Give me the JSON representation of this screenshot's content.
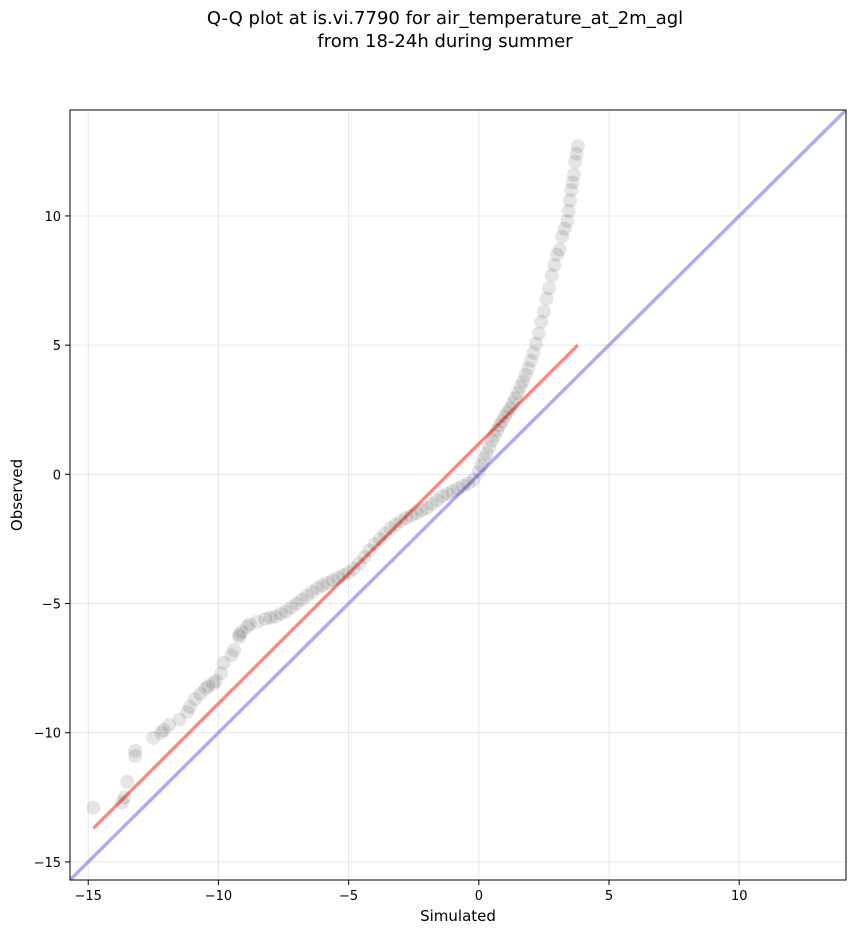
{
  "chart_data": {
    "type": "scatter",
    "title_lines": [
      "Q-Q plot at is.vi.7790 for air_temperature_at_2m_agl",
      "from 18-24h during summer"
    ],
    "xlabel": "Simulated",
    "ylabel": "Observed",
    "xlim": [
      -15.7,
      14.1
    ],
    "ylim": [
      -15.7,
      14.1
    ],
    "xticks": [
      -15,
      -10,
      -5,
      0,
      5,
      10
    ],
    "yticks": [
      -15,
      -10,
      -5,
      0,
      5,
      10
    ],
    "xtick_labels": [
      "−15",
      "−10",
      "−5",
      "0",
      "5",
      "10"
    ],
    "ytick_labels": [
      "−15",
      "−10",
      "−5",
      "0",
      "5",
      "10"
    ],
    "grid": true,
    "series": [
      {
        "kind": "points",
        "color": "#000000",
        "x": [
          -14.8,
          -13.7,
          -13.6,
          -13.5,
          -13.2,
          -13.2,
          -12.5,
          -12.2,
          -12.1,
          -11.9,
          -11.5,
          -11.2,
          -11.1,
          -10.9,
          -10.7,
          -10.5,
          -10.4,
          -10.2,
          -10.1,
          -9.9,
          -9.8,
          -9.5,
          -9.4,
          -9.2,
          -9.2,
          -9.1,
          -8.9,
          -8.8,
          -8.5,
          -8.2,
          -8.0,
          -7.8,
          -7.6,
          -7.4,
          -7.2,
          -7.0,
          -6.8,
          -6.6,
          -6.4,
          -6.2,
          -6.0,
          -5.8,
          -5.6,
          -5.4,
          -5.2,
          -5.0,
          -4.8,
          -4.6,
          -4.4,
          -4.2,
          -4.0,
          -3.8,
          -3.6,
          -3.4,
          -3.2,
          -3.0,
          -2.8,
          -2.6,
          -2.4,
          -2.2,
          -2.0,
          -1.8,
          -1.6,
          -1.4,
          -1.2,
          -1.0,
          -0.8,
          -0.6,
          -0.4,
          -0.2,
          0.0,
          0.1,
          0.2,
          0.3,
          0.4,
          0.5,
          0.6,
          0.7,
          0.8,
          0.9,
          1.0,
          1.1,
          1.2,
          1.3,
          1.4,
          1.5,
          1.6,
          1.7,
          1.8,
          1.9,
          2.0,
          2.1,
          2.2,
          2.3,
          2.4,
          2.5,
          2.6,
          2.7,
          2.8,
          2.9,
          3.0,
          3.1,
          3.2,
          3.3,
          3.4,
          3.45,
          3.5,
          3.55,
          3.6,
          3.65,
          3.7,
          3.75,
          3.8
        ],
        "y": [
          -12.9,
          -12.7,
          -12.5,
          -11.9,
          -10.9,
          -10.7,
          -10.2,
          -10.0,
          -9.9,
          -9.7,
          -9.5,
          -9.2,
          -9.0,
          -8.7,
          -8.5,
          -8.3,
          -8.2,
          -8.1,
          -8.0,
          -7.7,
          -7.3,
          -7.0,
          -6.8,
          -6.3,
          -6.2,
          -6.1,
          -5.9,
          -5.8,
          -5.7,
          -5.6,
          -5.55,
          -5.5,
          -5.4,
          -5.3,
          -5.15,
          -5.0,
          -4.85,
          -4.7,
          -4.55,
          -4.4,
          -4.3,
          -4.2,
          -4.1,
          -4.0,
          -3.9,
          -3.8,
          -3.65,
          -3.45,
          -3.2,
          -2.95,
          -2.7,
          -2.5,
          -2.3,
          -2.1,
          -1.95,
          -1.8,
          -1.7,
          -1.6,
          -1.5,
          -1.4,
          -1.3,
          -1.15,
          -1.0,
          -0.85,
          -0.75,
          -0.65,
          -0.55,
          -0.45,
          -0.35,
          -0.2,
          0.1,
          0.35,
          0.6,
          0.8,
          1.05,
          1.3,
          1.5,
          1.7,
          1.9,
          2.05,
          2.25,
          2.4,
          2.55,
          2.75,
          2.95,
          3.15,
          3.4,
          3.6,
          3.85,
          4.1,
          4.4,
          4.7,
          5.05,
          5.45,
          5.9,
          6.3,
          6.8,
          7.2,
          7.7,
          8.1,
          8.5,
          8.7,
          9.2,
          9.5,
          9.8,
          10.2,
          10.6,
          11.0,
          11.3,
          11.6,
          12.1,
          12.4,
          12.7
        ]
      },
      {
        "kind": "fit-line",
        "color": "#ff6666",
        "x": [
          -14.8,
          3.8
        ],
        "y": [
          -13.7,
          5.0
        ]
      },
      {
        "kind": "identity-line",
        "color": "#7777ee",
        "x": [
          -15.7,
          14.1
        ],
        "y": [
          -15.7,
          14.1
        ]
      }
    ]
  }
}
